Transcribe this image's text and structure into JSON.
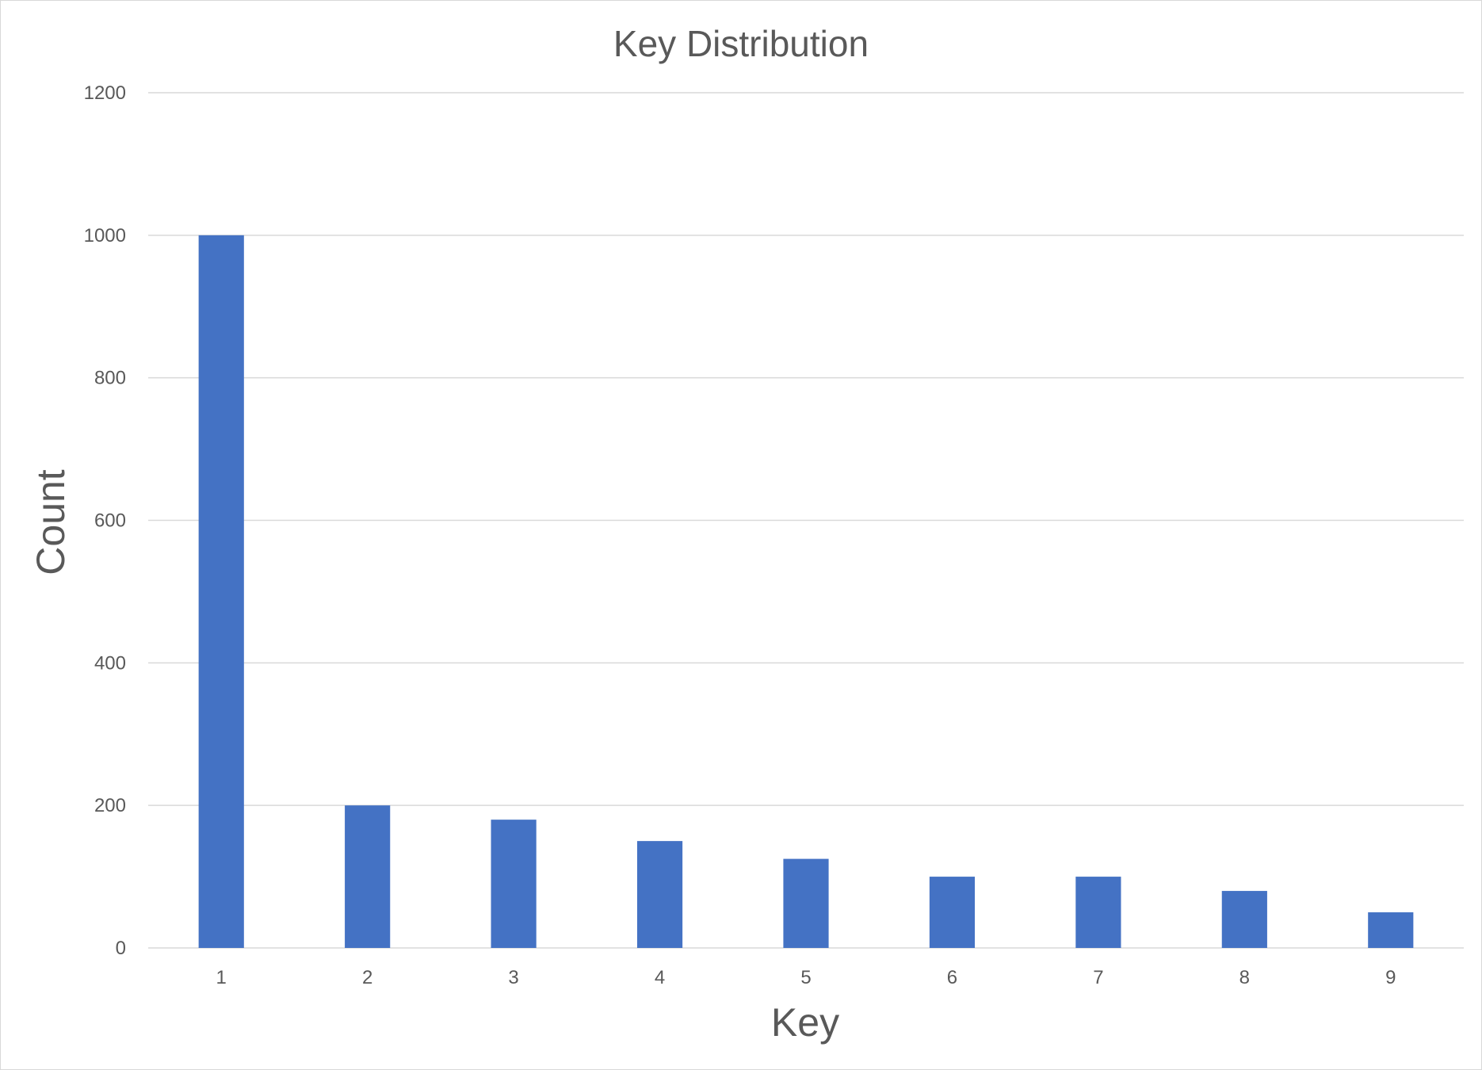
{
  "chart_data": {
    "type": "bar",
    "title": "Key Distribution",
    "xlabel": "Key",
    "ylabel": "Count",
    "categories": [
      "1",
      "2",
      "3",
      "4",
      "5",
      "6",
      "7",
      "8",
      "9"
    ],
    "values": [
      1000,
      200,
      180,
      150,
      125,
      100,
      100,
      80,
      50
    ],
    "ylim": [
      0,
      1200
    ],
    "yticks": [
      0,
      200,
      400,
      600,
      800,
      1000,
      1200
    ],
    "grid": true,
    "legend": "none",
    "bar_color": "#4472C4",
    "grid_color": "#D9D9D9",
    "text_color": "#595959"
  }
}
